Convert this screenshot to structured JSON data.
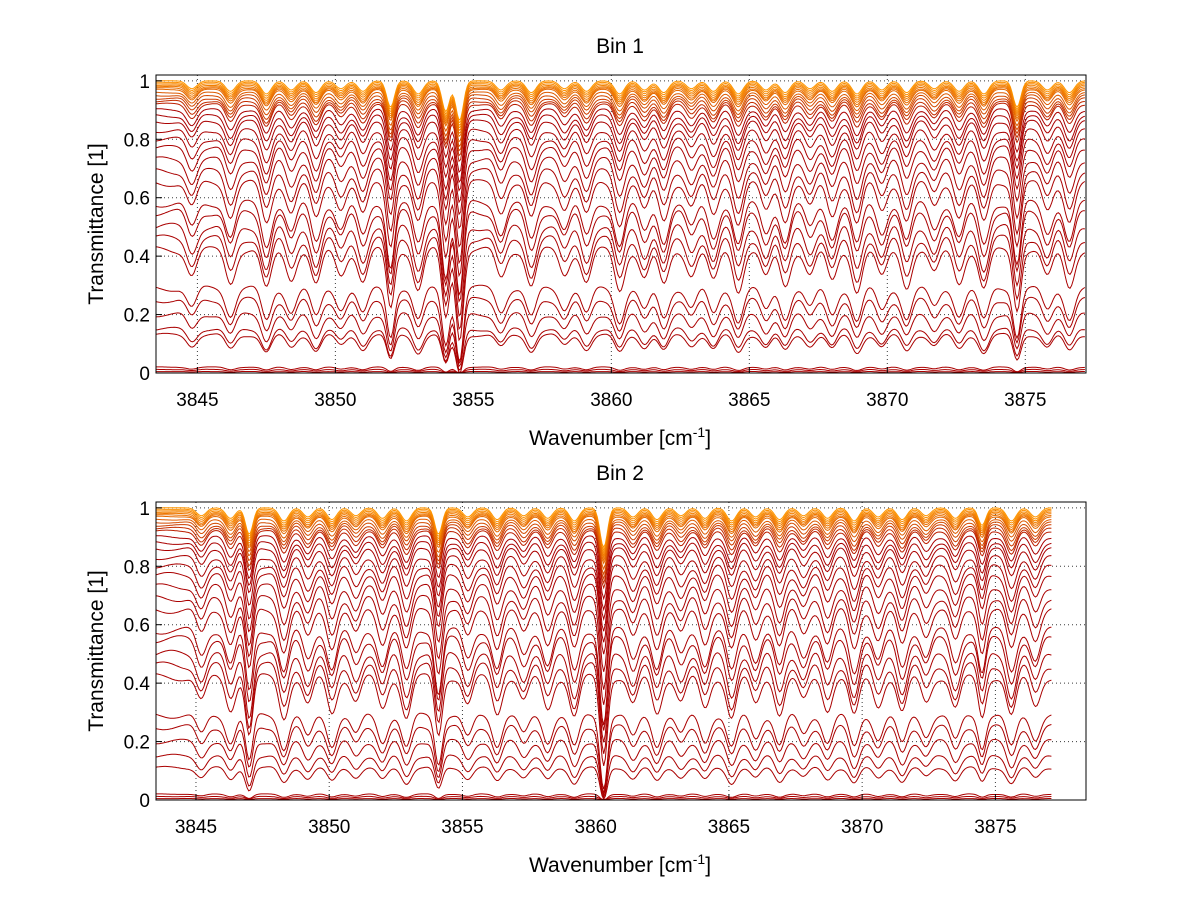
{
  "chart_data": [
    {
      "type": "line",
      "title": "Bin 1",
      "xlabel": "Wavenumber [cm",
      "xlabel_sup": "-1",
      "xlabel_end": "]",
      "ylabel": "Transmittance [1]",
      "xlim": [
        3843.5,
        3877.2
      ],
      "ylim": [
        0,
        1.02
      ],
      "x_ticks": [
        3845,
        3850,
        3855,
        3860,
        3865,
        3870,
        3875
      ],
      "y_ticks": [
        0,
        0.2,
        0.4,
        0.6,
        0.8,
        1
      ],
      "y_tick_labels": [
        "0",
        "0.2",
        "0.4",
        "0.6",
        "0.8",
        "1"
      ],
      "grid": true,
      "line_x_end": 3877.2,
      "lines": [
        {
          "xs": [
            3852.0,
            3854.3,
            3874.7
          ],
          "ds": [
            0.04,
            0.09,
            0.05
          ]
        },
        {
          "xs": [
            3849.0,
            3858.0,
            3866.0,
            3872.0
          ],
          "ds": [
            0.03,
            0.02,
            0.02,
            0.02
          ]
        }
      ],
      "series_levels": [
        1.0,
        0.995,
        0.99,
        0.985,
        0.98,
        0.975,
        0.97,
        0.96,
        0.95,
        0.94,
        0.93,
        0.92,
        0.9,
        0.88,
        0.86,
        0.83,
        0.8,
        0.77,
        0.73,
        0.69,
        0.65,
        0.58,
        0.55,
        0.5,
        0.46,
        0.42,
        0.29,
        0.25,
        0.2,
        0.15,
        0.13,
        0.02,
        0.012,
        0.005
      ],
      "strong_lines": [
        {
          "x": 3852.0,
          "depth": 0.3
        },
        {
          "x": 3854.0,
          "depth": 0.35
        },
        {
          "x": 3854.5,
          "depth": 0.45
        },
        {
          "x": 3874.7,
          "depth": 0.3
        }
      ],
      "weak_lines": [
        3844.8,
        3846.2,
        3847.5,
        3848.4,
        3849.3,
        3850.2,
        3851.0,
        3853.0,
        3856.0,
        3857.1,
        3858.3,
        3859.1,
        3860.3,
        3861.2,
        3861.9,
        3862.9,
        3863.7,
        3864.6,
        3865.6,
        3866.3,
        3867.2,
        3868.0,
        3868.9,
        3869.8,
        3870.7,
        3871.7,
        3872.6,
        3873.5,
        3875.8,
        3876.6
      ]
    },
    {
      "type": "line",
      "title": "Bin 2",
      "xlabel": "Wavenumber [cm",
      "xlabel_sup": "-1",
      "xlabel_end": "]",
      "ylabel": "Transmittance [1]",
      "xlim": [
        3843.5,
        3878.4
      ],
      "ylim": [
        0,
        1.02
      ],
      "x_ticks": [
        3845,
        3850,
        3855,
        3860,
        3865,
        3870,
        3875
      ],
      "y_ticks": [
        0,
        0.2,
        0.4,
        0.6,
        0.8,
        1
      ],
      "y_tick_labels": [
        "0",
        "0.2",
        "0.4",
        "0.6",
        "0.8",
        "1"
      ],
      "grid": true,
      "line_x_end": 3877.1,
      "series_levels": [
        1.0,
        0.995,
        0.99,
        0.985,
        0.98,
        0.975,
        0.97,
        0.96,
        0.95,
        0.94,
        0.93,
        0.92,
        0.9,
        0.88,
        0.86,
        0.83,
        0.8,
        0.77,
        0.73,
        0.69,
        0.65,
        0.58,
        0.55,
        0.5,
        0.46,
        0.42,
        0.29,
        0.25,
        0.2,
        0.15,
        0.11,
        0.02,
        0.012,
        0.005
      ],
      "strong_lines": [
        {
          "x": 3847.0,
          "depth": 0.3
        },
        {
          "x": 3854.1,
          "depth": 0.3
        },
        {
          "x": 3860.3,
          "depth": 0.45
        },
        {
          "x": 3874.5,
          "depth": 0.2
        }
      ],
      "weak_lines": [
        3845.2,
        3846.3,
        3848.3,
        3849.2,
        3850.1,
        3851.0,
        3852.0,
        3852.9,
        3855.2,
        3856.3,
        3857.3,
        3858.2,
        3859.2,
        3861.4,
        3862.3,
        3863.2,
        3864.1,
        3865.1,
        3866.0,
        3866.9,
        3867.8,
        3868.7,
        3869.7,
        3870.6,
        3871.5,
        3872.4,
        3873.5,
        3875.6,
        3876.5
      ]
    }
  ]
}
